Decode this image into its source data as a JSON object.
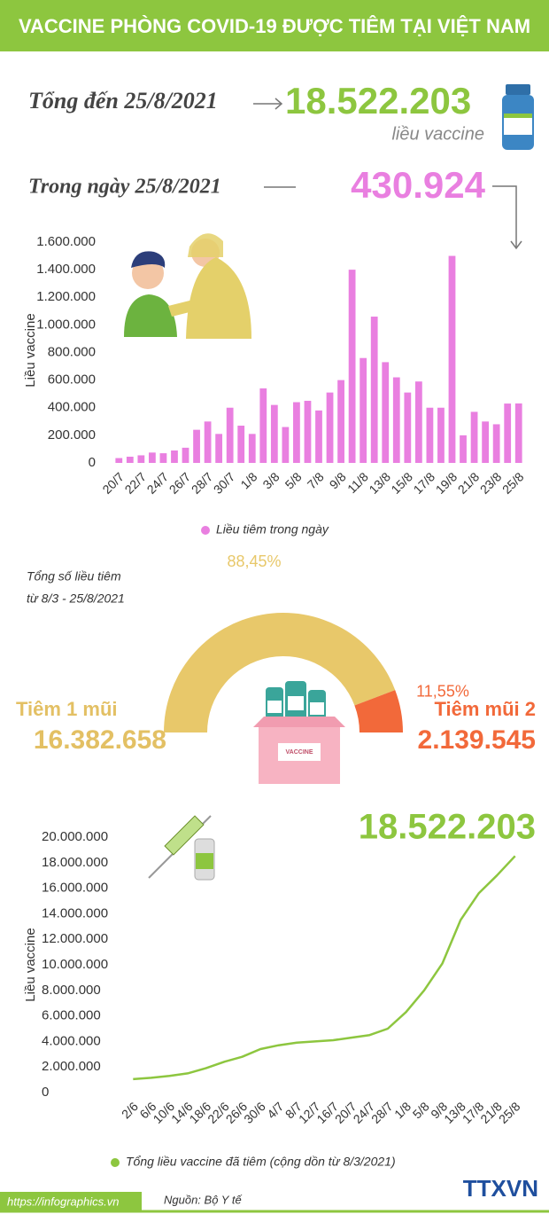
{
  "header": {
    "title": "VACCINE PHÒNG COVID-19 ĐƯỢC TIÊM TẠI VIỆT NAM"
  },
  "summary": {
    "total_label": "Tổng đến 25/8/2021",
    "total_value": "18.522.203",
    "total_unit": "liều vaccine",
    "day_label": "Trong ngày 25/8/2021",
    "day_value": "430.924"
  },
  "doses": {
    "first_total": "16.382.658",
    "second_total": "2.139.545"
  },
  "line_highlight": "18.522.203",
  "footer": {
    "url": "https://infographics.vn",
    "source": "Nguồn: Bộ Y tế",
    "logo": "TTXVN"
  },
  "chart_data": [
    {
      "type": "bar",
      "y_label": "Liều vaccine",
      "categories": [
        "20/7",
        null,
        "22/7",
        null,
        "24/7",
        null,
        "26/7",
        null,
        "28/7",
        null,
        "30/7",
        null,
        "1/8",
        null,
        "3/8",
        null,
        "5/8",
        null,
        "7/8",
        null,
        "9/8",
        null,
        "11/8",
        null,
        "13/8",
        null,
        "15/8",
        null,
        "17/8",
        null,
        "19/8",
        null,
        "21/8",
        null,
        "23/8",
        null,
        "25/8"
      ],
      "series": [
        {
          "name": "Liều tiêm trong ngày",
          "color": "#e97fe0",
          "values": [
            35000,
            45000,
            55000,
            75000,
            70000,
            90000,
            110000,
            240000,
            300000,
            210000,
            400000,
            270000,
            210000,
            540000,
            420000,
            260000,
            440000,
            450000,
            380000,
            510000,
            600000,
            1400000,
            760000,
            1060000,
            730000,
            620000,
            510000,
            590000,
            400000,
            400000,
            1500000,
            200000,
            370000,
            300000,
            280000,
            430000,
            430924
          ]
        }
      ],
      "ylim": [
        0,
        1600000
      ],
      "yticks": [
        0,
        {
          "value": 200000,
          "label": "200.000"
        },
        {
          "value": 400000,
          "label": "400.000"
        },
        {
          "value": 600000,
          "label": "600.000"
        },
        {
          "value": 800000,
          "label": "800.000"
        },
        {
          "value": 1000000,
          "label": "1.000.000"
        },
        {
          "value": 1200000,
          "label": "1.200.000"
        },
        {
          "value": 1400000,
          "label": "1.400.000"
        },
        {
          "value": 1600000,
          "label": "1.600.000"
        }
      ],
      "grid": false
    },
    {
      "type": "pie",
      "subtitle": [
        "Tổng số liều tiêm",
        "từ 8/3 - 25/8/2021"
      ],
      "categories": [
        "Tiêm 1 mũi",
        "Tiêm mũi 2"
      ],
      "values": [
        88.45,
        11.55
      ],
      "value_labels": [
        "88,45%",
        "11,55%"
      ],
      "colors": [
        "#e8c86a",
        "#f2693a"
      ]
    },
    {
      "type": "line",
      "y_label": "Liều vaccine",
      "categories": [
        "2/6",
        "6/6",
        "10/6",
        "14/6",
        "18/6",
        "22/6",
        "26/6",
        "30/6",
        "4/7",
        "8/7",
        "12/7",
        "16/7",
        "20/7",
        "24/7",
        "28/7",
        "1/8",
        "5/8",
        "9/8",
        "13/8",
        "17/8",
        "21/8",
        "25/8"
      ],
      "series": [
        {
          "name": "Tổng liều vaccine đã tiêm (cộng dồn từ 8/3/2021)",
          "color": "#8dc63f",
          "values": [
            1050000,
            1150000,
            1300000,
            1500000,
            1900000,
            2400000,
            2800000,
            3400000,
            3700000,
            3900000,
            4000000,
            4100000,
            4300000,
            4500000,
            5000000,
            6300000,
            8000000,
            10100000,
            13500000,
            15600000,
            17000000,
            18522203
          ]
        }
      ],
      "ylim": [
        0,
        20000000
      ],
      "yticks": [
        0,
        {
          "value": 2000000,
          "label": "2.000.000"
        },
        {
          "value": 4000000,
          "label": "4.000.000"
        },
        {
          "value": 6000000,
          "label": "6.000.000"
        },
        {
          "value": 8000000,
          "label": "8.000.000"
        },
        {
          "value": 10000000,
          "label": "10.000.000"
        },
        {
          "value": 12000000,
          "label": "12.000.000"
        },
        {
          "value": 14000000,
          "label": "14.000.000"
        },
        {
          "value": 16000000,
          "label": "16.000.000"
        },
        {
          "value": 18000000,
          "label": "18.000.000"
        },
        {
          "value": 20000000,
          "label": "20.000.000"
        }
      ],
      "grid": false
    }
  ]
}
